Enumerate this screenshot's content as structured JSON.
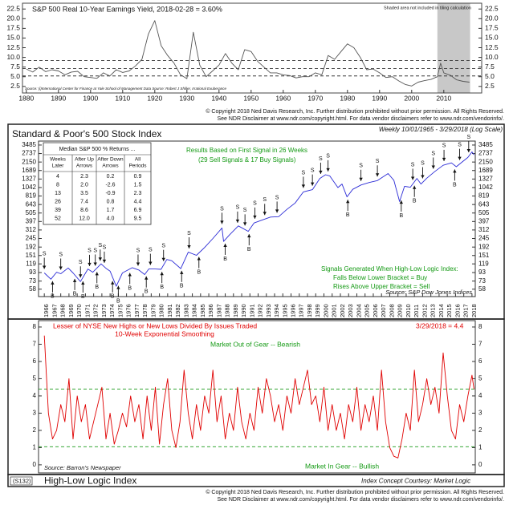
{
  "chart_data": [
    {
      "type": "line",
      "title": "S&P 500 Real 10-Year Earnings Yield, 2018-02-28 = 3.60%",
      "note": "Shaded area not included in tiling calculation",
      "source": "Source: (i)International Center for Finance at Yale School of Management Data Source: Robert J Shiller, Irrational Exuberance",
      "x": [
        1880,
        1882,
        1884,
        1886,
        1888,
        1890,
        1892,
        1894,
        1896,
        1898,
        1900,
        1902,
        1904,
        1906,
        1908,
        1910,
        1912,
        1914,
        1916,
        1918,
        1920,
        1922,
        1924,
        1926,
        1928,
        1930,
        1932,
        1934,
        1936,
        1938,
        1940,
        1942,
        1944,
        1946,
        1948,
        1950,
        1952,
        1954,
        1956,
        1958,
        1960,
        1962,
        1964,
        1966,
        1968,
        1970,
        1972,
        1974,
        1976,
        1978,
        1980,
        1982,
        1984,
        1986,
        1988,
        1990,
        1992,
        1994,
        1996,
        1998,
        2000,
        2002,
        2004,
        2006,
        2008,
        2009,
        2010,
        2012,
        2014,
        2016,
        2018
      ],
      "values": [
        7.0,
        6.2,
        7.5,
        6.3,
        6.8,
        6.5,
        5.5,
        6.2,
        6.4,
        5.0,
        4.8,
        4.6,
        6.0,
        5.2,
        6.8,
        6.1,
        6.5,
        7.8,
        9.5,
        16.0,
        19.5,
        13.0,
        10.5,
        8.5,
        5.5,
        4.5,
        16.5,
        8.0,
        5.0,
        6.5,
        8.0,
        11.0,
        8.5,
        6.8,
        12.0,
        11.5,
        9.0,
        7.5,
        6.0,
        6.0,
        5.5,
        5.3,
        4.7,
        5.0,
        5.0,
        6.0,
        5.5,
        10.5,
        9.5,
        11.5,
        13.5,
        12.5,
        10.0,
        6.8,
        7.0,
        6.0,
        4.8,
        5.0,
        3.9,
        3.0,
        2.6,
        3.6,
        4.0,
        4.3,
        5.0,
        8.5,
        6.0,
        5.4,
        4.2,
        3.8,
        3.6
      ],
      "color": "#555555",
      "xlim": [
        1878.8,
        2021.8
      ],
      "ylim": [
        0.8,
        24
      ],
      "xticks": [
        1880,
        1890,
        1900,
        1910,
        1920,
        1930,
        1940,
        1950,
        1960,
        1970,
        1980,
        1990,
        2000,
        2010
      ],
      "x_labels": "horizontal",
      "yticks": [
        2.5,
        {
          "value": 5,
          "label": "5.0"
        },
        7.5,
        {
          "value": 10,
          "label": "10.0"
        },
        12.5,
        {
          "value": 15,
          "label": "15.0"
        },
        17.5,
        {
          "value": 20,
          "label": "20.0"
        },
        22.5
      ],
      "y_axis_both_sides": true,
      "hlines": [
        5.2,
        7.1,
        9.2
      ],
      "hline_color": "#333333",
      "shade": [
        2008,
        2018.2
      ],
      "shade_color": "#c8c8c8"
    },
    {
      "type": "line",
      "title": "Standard & Poor's 500 Stock Index",
      "subtitle": "Weekly 10/01/1965 - 3/29/2018 (Log Scale)",
      "annotations": [
        "Results Based on First Signal in 26 Weeks",
        "(29 Sell Signals & 17 Buy Signals)",
        "Signals Generated When High-Low Logic Index:",
        "Falls Below Lower Bracket = Buy",
        "Rises Above Upper Bracket = Sell"
      ],
      "source": "Source: S&P Dow Jones Indices",
      "log_scale": true,
      "color": "#2b2bd6",
      "x": [
        1966.0,
        1966.8,
        1967.5,
        1968.0,
        1968.9,
        1969.5,
        1970.4,
        1971.3,
        1971.9,
        1972.9,
        1973.5,
        1974.0,
        1974.75,
        1975.5,
        1976.7,
        1977.5,
        1978.2,
        1978.7,
        1979.5,
        1980.2,
        1980.9,
        1981.5,
        1982.6,
        1983.5,
        1984.5,
        1985.5,
        1986.5,
        1987.6,
        1987.8,
        1988.5,
        1989.6,
        1990.8,
        1991.5,
        1992.5,
        1993.5,
        1994.5,
        1995.5,
        1996.5,
        1997.5,
        1998.6,
        1999.5,
        2000.2,
        2000.7,
        2001.7,
        2002.2,
        2002.8,
        2003.5,
        2004.5,
        2005.5,
        2006.5,
        2007.8,
        2008.5,
        2009.2,
        2009.8,
        2010.5,
        2011.3,
        2011.8,
        2012.5,
        2013.5,
        2014.5,
        2015.5,
        2016.1,
        2016.8,
        2017.5,
        2018.0,
        2018.24
      ],
      "values": [
        92,
        77,
        94,
        90,
        106,
        92,
        72,
        103,
        94,
        119,
        105,
        97,
        63,
        92,
        107,
        100,
        88,
        103,
        103,
        102,
        135,
        130,
        104,
        166,
        152,
        190,
        245,
        330,
        225,
        270,
        350,
        300,
        380,
        415,
        450,
        455,
        560,
        670,
        920,
        980,
        1350,
        1500,
        1450,
        1040,
        1150,
        800,
        990,
        1120,
        1200,
        1270,
        1550,
        1280,
        700,
        1080,
        1050,
        1350,
        1150,
        1360,
        1650,
        1960,
        2100,
        1880,
        2150,
        2450,
        2870,
        2640
      ],
      "xlim": [
        1965.3,
        2018.4
      ],
      "ylim": [
        47,
        3900
      ],
      "xticks": [
        1966,
        1967,
        1968,
        1969,
        1970,
        1971,
        1972,
        1973,
        1974,
        1975,
        1976,
        1977,
        1978,
        1979,
        1980,
        1981,
        1982,
        1983,
        1984,
        1985,
        1986,
        1987,
        1988,
        1989,
        1990,
        1991,
        1992,
        1993,
        1994,
        1995,
        1996,
        1997,
        1998,
        1999,
        2000,
        2001,
        2002,
        2003,
        2004,
        2005,
        2006,
        2007,
        2008,
        2009,
        2010,
        2011,
        2012,
        2013,
        2014,
        2015,
        2016,
        2017,
        2018
      ],
      "x_labels": "vertical",
      "yticks": [
        58,
        73,
        93,
        119,
        151,
        192,
        245,
        312,
        397,
        505,
        643,
        819,
        1042,
        1327,
        1689,
        2150,
        2737,
        3485
      ],
      "y_axis_both_sides": true,
      "signals": [
        {
          "name": "S",
          "position": "above",
          "x": [
            1966.0,
            1968.0,
            1970.4,
            1971.5,
            1972.2,
            1972.8,
            1973.3,
            1977.4,
            1978.9,
            1980.5,
            1983.6,
            1987.6,
            1989.5,
            1990.4,
            1991.6,
            1992.8,
            1994.3,
            1997.5,
            1998.6,
            1999.6,
            2000.5,
            2004.5,
            2006.5,
            2010.8,
            2012.0,
            2013.3,
            2014.6,
            2016.5,
            2017.6
          ]
        },
        {
          "name": "B",
          "position": "below",
          "x": [
            1967.0,
            1969.7,
            1970.7,
            1972.4,
            1974.3,
            1975.0,
            1976.4,
            1978.4,
            1980.3,
            1982.7,
            1984.8,
            1988.0,
            1990.9,
            2002.9,
            2009.4,
            2011.0,
            2015.9
          ]
        }
      ],
      "table": {
        "title": "Median S&P 500 % Returns ...",
        "headers": [
          [
            "Weeks",
            "Later"
          ],
          [
            "After Up",
            "Arrows"
          ],
          [
            "After Down",
            "Arrows"
          ],
          [
            "All",
            "Periods"
          ]
        ],
        "rows": [
          [
            "4",
            "2.3",
            "0.2",
            "0.9"
          ],
          [
            "8",
            "2.0",
            "-2.6",
            "1.5"
          ],
          [
            "13",
            "3.5",
            "-0.9",
            "2.3"
          ],
          [
            "26",
            "7.4",
            "0.8",
            "4.4"
          ],
          [
            "39",
            "8.6",
            "1.7",
            "6.9"
          ],
          [
            "52",
            "12.0",
            "4.0",
            "9.5"
          ]
        ]
      }
    },
    {
      "type": "line",
      "title": "Lesser of NYSE New Highs or New Lows Divided By Issues Traded",
      "subtitle": "10-Week Exponential Smoothing",
      "date_label": "3/29/2018 = 4.4",
      "annotations": [
        "Market Out of Gear -- Bearish",
        "Market In Gear -- Bullish"
      ],
      "source": "Source: Barron's Newspaper",
      "color": "#e00000",
      "x": [
        1966,
        1966.5,
        1967,
        1967.5,
        1968,
        1968.5,
        1969,
        1969.5,
        1970,
        1970.5,
        1971,
        1971.5,
        1972,
        1972.5,
        1973,
        1973.5,
        1974,
        1974.5,
        1975,
        1975.5,
        1976,
        1976.5,
        1977,
        1977.5,
        1978,
        1978.5,
        1979,
        1979.5,
        1980,
        1980.5,
        1981,
        1981.5,
        1982,
        1982.5,
        1983,
        1983.5,
        1984,
        1984.5,
        1985,
        1985.5,
        1986,
        1986.5,
        1987,
        1987.5,
        1988,
        1988.5,
        1989,
        1989.5,
        1990,
        1990.5,
        1991,
        1991.5,
        1992,
        1992.5,
        1993,
        1993.5,
        1994,
        1994.5,
        1995,
        1995.5,
        1996,
        1996.5,
        1997,
        1997.5,
        1998,
        1998.5,
        1999,
        1999.5,
        2000,
        2000.5,
        2001,
        2001.5,
        2002,
        2002.5,
        2003,
        2003.5,
        2004,
        2004.5,
        2005,
        2005.5,
        2006,
        2006.5,
        2007,
        2007.5,
        2008,
        2008.5,
        2009,
        2009.5,
        2010,
        2010.5,
        2011,
        2011.5,
        2012,
        2012.5,
        2013,
        2013.5,
        2014,
        2014.5,
        2015,
        2015.5,
        2016,
        2016.5,
        2017,
        2017.5,
        2018,
        2018.24
      ],
      "values": [
        7.5,
        3,
        1.5,
        2,
        3.5,
        2.5,
        5,
        1.5,
        4,
        2.5,
        3.5,
        1.5,
        2.5,
        3.5,
        4.5,
        1.5,
        3,
        1.2,
        2,
        3,
        2.2,
        4,
        2.5,
        3.5,
        1.5,
        4,
        2,
        4.5,
        1.2,
        3.5,
        5,
        2,
        1,
        2.5,
        5.5,
        3,
        1.5,
        3.5,
        2,
        4,
        3,
        5.5,
        2.5,
        4,
        1.5,
        3,
        2,
        4.5,
        2.5,
        1.5,
        3,
        2,
        4.5,
        3,
        5,
        4,
        2.5,
        3.5,
        2,
        4,
        3,
        5,
        3.5,
        4.5,
        5.5,
        3.5,
        4,
        2.5,
        4.5,
        2,
        3.5,
        2,
        3,
        1.5,
        3.5,
        2.5,
        4.5,
        2,
        3.5,
        2.5,
        4,
        2,
        5.5,
        2.5,
        1,
        0.5,
        0.4,
        1.5,
        3,
        2,
        5.5,
        2.5,
        3.5,
        5,
        3.5,
        4.5,
        3,
        6.5,
        4,
        2,
        1.5,
        3.5,
        2.5,
        4,
        5.2,
        4.4
      ],
      "xlim": [
        1965.3,
        2018.4
      ],
      "ylim": [
        -0.47,
        8.37
      ],
      "yticks": [
        0,
        1,
        2,
        3,
        4,
        5,
        6,
        7,
        8
      ],
      "y_axis_both_sides": true,
      "hlines": [
        4.4,
        1.05
      ],
      "hline_color": "#1a9a1a"
    }
  ],
  "copyright": {
    "line1": "© Copyright 2018 Ned Davis Research, Inc. Further distribution prohibited without prior permission. All Rights Reserved.",
    "line2": "See NDR Disclaimer at www.ndr.com/copyright.html. For data vendor disclaimers refer to www.ndr.com/vendorinfo/."
  },
  "footer": {
    "code": "(S132)",
    "title": "High-Low Logic Index",
    "credit": "Index Concept Courtesy: Market Logic"
  }
}
